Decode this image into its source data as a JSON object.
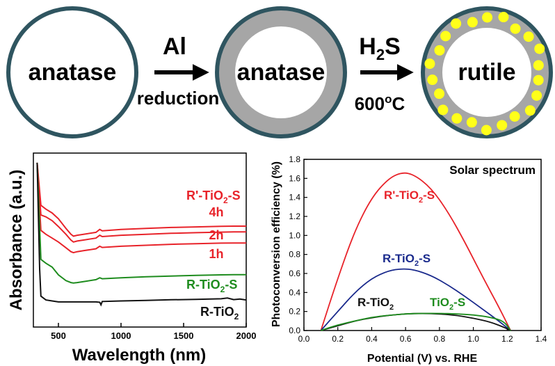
{
  "schematic": {
    "stage1_label": "anatase",
    "stage2_label": "anatase",
    "stage3_label": "rutile",
    "arrow1_top": "Al",
    "arrow1_bottom": "reduction",
    "arrow2_top_main": "H",
    "arrow2_top_sub": "2",
    "arrow2_top_tail": "S",
    "arrow2_bottom_main": "600",
    "arrow2_bottom_sup": "o",
    "arrow2_bottom_tail": "C",
    "colors": {
      "circle_stroke": "#2f5560",
      "shell": "#a6a6a6",
      "dots": "#ffff1a"
    }
  },
  "chart_data": [
    {
      "type": "line",
      "xlabel": "Wavelength (nm)",
      "ylabel": "Absorbance (a.u.)",
      "xlim": [
        300,
        2000
      ],
      "xticks": [
        500,
        1000,
        1500,
        2000
      ],
      "yticks_shown": false,
      "series": [
        {
          "name": "R'-TiO2-S 4h",
          "color": "#e8232a",
          "x": [
            330,
            360,
            400,
            450,
            500,
            560,
            600,
            620,
            650,
            700,
            800,
            830,
            850,
            1000,
            1200,
            1400,
            1600,
            1800,
            1900,
            2000
          ],
          "y": [
            1.0,
            0.78,
            0.76,
            0.74,
            0.71,
            0.66,
            0.63,
            0.62,
            0.625,
            0.63,
            0.64,
            0.655,
            0.648,
            0.655,
            0.66,
            0.665,
            0.668,
            0.671,
            0.672,
            0.672
          ]
        },
        {
          "name": "R'-TiO2-S 2h",
          "color": "#e8232a",
          "x": [
            330,
            360,
            400,
            450,
            500,
            560,
            600,
            620,
            650,
            700,
            800,
            830,
            850,
            1000,
            1200,
            1400,
            1600,
            1800,
            1900,
            2000
          ],
          "y": [
            1.0,
            0.73,
            0.72,
            0.7,
            0.67,
            0.63,
            0.6,
            0.59,
            0.595,
            0.6,
            0.61,
            0.625,
            0.618,
            0.625,
            0.63,
            0.635,
            0.638,
            0.641,
            0.642,
            0.642
          ]
        },
        {
          "name": "R'-TiO2-S 1h",
          "color": "#e8232a",
          "x": [
            330,
            360,
            400,
            450,
            500,
            560,
            600,
            620,
            650,
            700,
            800,
            830,
            850,
            1000,
            1200,
            1400,
            1600,
            1800,
            1900,
            2000
          ],
          "y": [
            1.0,
            0.65,
            0.63,
            0.61,
            0.59,
            0.56,
            0.54,
            0.535,
            0.54,
            0.545,
            0.555,
            0.568,
            0.562,
            0.568,
            0.573,
            0.578,
            0.581,
            0.584,
            0.585,
            0.585
          ]
        },
        {
          "name": "R-TiO2-S",
          "color": "#1e8c1e",
          "x": [
            330,
            360,
            400,
            450,
            500,
            560,
            600,
            620,
            650,
            700,
            800,
            830,
            850,
            1000,
            1200,
            1400,
            1600,
            1800,
            1900,
            2000
          ],
          "y": [
            1.0,
            0.5,
            0.48,
            0.46,
            0.42,
            0.39,
            0.38,
            0.378,
            0.38,
            0.385,
            0.395,
            0.405,
            0.4,
            0.405,
            0.41,
            0.414,
            0.417,
            0.42,
            0.421,
            0.421
          ]
        },
        {
          "name": "R-TiO2",
          "color": "#111111",
          "x": [
            330,
            350,
            360,
            380,
            400,
            450,
            500,
            600,
            700,
            800,
            830,
            840,
            850,
            1000,
            1200,
            1400,
            1600,
            1800,
            1850,
            1900,
            1950,
            2000
          ],
          "y": [
            1.0,
            0.45,
            0.31,
            0.3,
            0.29,
            0.285,
            0.28,
            0.28,
            0.28,
            0.28,
            0.278,
            0.265,
            0.282,
            0.285,
            0.288,
            0.291,
            0.293,
            0.296,
            0.3,
            0.292,
            0.295,
            0.29
          ]
        }
      ],
      "annotations": {
        "group_main": "R'-TiO",
        "group_sub": "2",
        "group_tail": "-S",
        "t4": "4h",
        "t2": "2h",
        "t1": "1h",
        "green_main": "R-TiO",
        "green_sub": "2",
        "green_tail": "-S",
        "black_main": "R-TiO",
        "black_sub": "2"
      }
    },
    {
      "type": "line",
      "title": "Solar spectrum",
      "xlabel": "Potential (V) vs. RHE",
      "ylabel": "Photoconversion efficiency (%)",
      "xlim": [
        0.0,
        1.4
      ],
      "ylim": [
        0.0,
        1.8
      ],
      "xticks": [
        "0.0",
        "0.2",
        "0.4",
        "0.6",
        "0.8",
        "1.0",
        "1.2",
        "1.4"
      ],
      "yticks": [
        "0.0",
        "0.2",
        "0.4",
        "0.6",
        "0.8",
        "1.0",
        "1.2",
        "1.4",
        "1.6",
        "1.8"
      ],
      "series": [
        {
          "name": "R'-TiO2-S",
          "color": "#e8232a",
          "x": [
            0.1,
            0.2,
            0.3,
            0.4,
            0.5,
            0.58,
            0.65,
            0.75,
            0.85,
            0.95,
            1.05,
            1.15,
            1.22
          ],
          "y": [
            0.0,
            0.55,
            1.05,
            1.4,
            1.6,
            1.665,
            1.64,
            1.5,
            1.25,
            0.93,
            0.58,
            0.25,
            0.0
          ]
        },
        {
          "name": "R-TiO2-S",
          "color": "#1a2a8c",
          "x": [
            0.1,
            0.2,
            0.3,
            0.4,
            0.5,
            0.58,
            0.65,
            0.75,
            0.85,
            0.95,
            1.05,
            1.15,
            1.22
          ],
          "y": [
            0.0,
            0.2,
            0.4,
            0.55,
            0.63,
            0.65,
            0.64,
            0.58,
            0.48,
            0.36,
            0.23,
            0.1,
            0.0
          ]
        },
        {
          "name": "R-TiO2",
          "color": "#111111",
          "x": [
            0.1,
            0.2,
            0.3,
            0.4,
            0.5,
            0.6,
            0.7,
            0.8,
            0.9,
            1.0,
            1.1,
            1.18,
            1.22
          ],
          "y": [
            0.0,
            0.05,
            0.1,
            0.135,
            0.16,
            0.175,
            0.18,
            0.175,
            0.16,
            0.13,
            0.09,
            0.035,
            0.0
          ]
        },
        {
          "name": "TiO2-S",
          "color": "#1e8c1e",
          "x": [
            0.1,
            0.2,
            0.3,
            0.4,
            0.5,
            0.6,
            0.7,
            0.8,
            0.9,
            1.0,
            1.1,
            1.18,
            1.22
          ],
          "y": [
            0.0,
            0.06,
            0.1,
            0.14,
            0.16,
            0.175,
            0.18,
            0.18,
            0.175,
            0.165,
            0.14,
            0.1,
            0.0
          ]
        }
      ],
      "annotations": {
        "red_main": "R'-TiO",
        "red_sub": "2",
        "red_tail": "-S",
        "blue_main": "R-TiO",
        "blue_sub": "2",
        "blue_tail": "-S",
        "black_main": "R-TiO",
        "black_sub": "2",
        "green_main": "TiO",
        "green_sub": "2",
        "green_tail": "-S"
      }
    }
  ]
}
